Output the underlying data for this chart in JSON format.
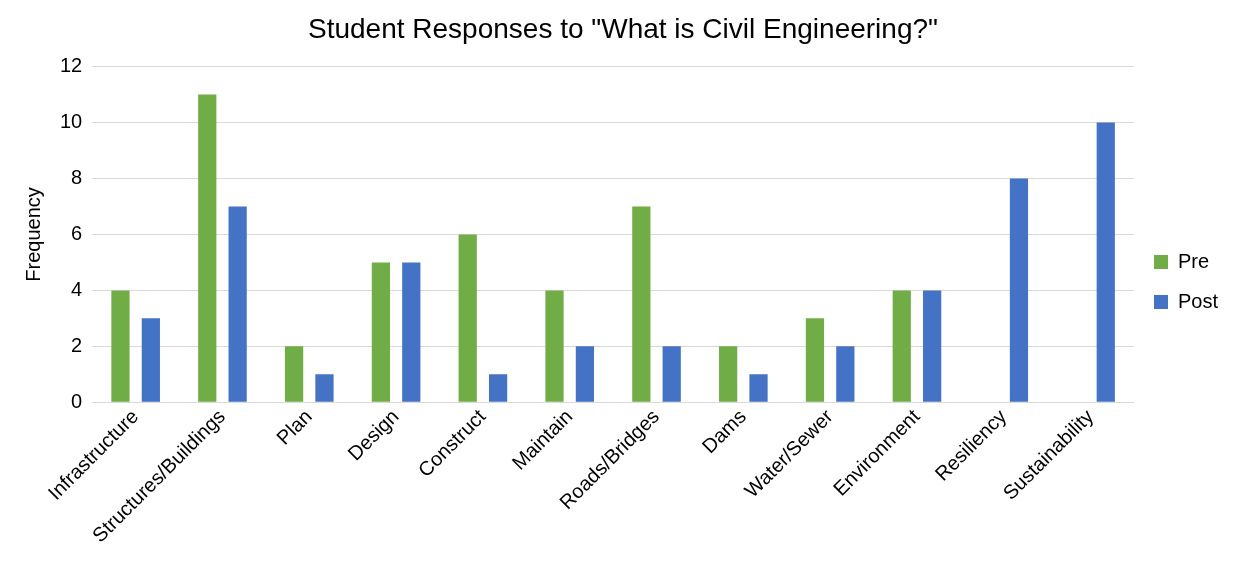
{
  "chart_data": {
    "type": "bar",
    "title": "Student Responses to \"What is Civil Engineering?\"",
    "ylabel": "Frequency",
    "categories": [
      "Infrastructure",
      "Structures/Buildings",
      "Plan",
      "Design",
      "Construct",
      "Maintain",
      "Roads/Bridges",
      "Dams",
      "Water/Sewer",
      "Environment",
      "Resiliency",
      "Sustainability"
    ],
    "series": [
      {
        "name": "Pre",
        "color": "#70ad47",
        "values": [
          4,
          11,
          2,
          5,
          6,
          4,
          7,
          2,
          3,
          4,
          0,
          0
        ]
      },
      {
        "name": "Post",
        "color": "#4472c4",
        "values": [
          3,
          7,
          1,
          5,
          1,
          2,
          2,
          1,
          2,
          4,
          8,
          10
        ]
      }
    ],
    "ylim": [
      0,
      12
    ],
    "yticks": [
      0,
      2,
      4,
      6,
      8,
      10,
      12
    ],
    "grid": "y",
    "legend": "right"
  }
}
